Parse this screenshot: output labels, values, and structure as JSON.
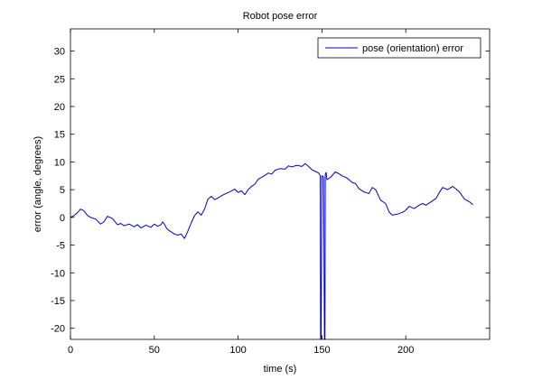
{
  "chart_data": {
    "type": "line",
    "title": "Robot pose error",
    "xlabel": "time (s)",
    "ylabel": "error (angle, degrees)",
    "xlim": [
      0,
      250
    ],
    "ylim": [
      -22,
      34
    ],
    "xticks": [
      0,
      50,
      100,
      150,
      200
    ],
    "yticks": [
      -20,
      -15,
      -10,
      -5,
      0,
      5,
      10,
      15,
      20,
      25,
      30
    ],
    "grid": false,
    "legend_position": "top-right",
    "series": [
      {
        "name": "pose (orientation) error",
        "color": "#0000cc",
        "x": [
          0,
          2,
          4,
          6,
          8,
          10,
          12,
          15,
          18,
          20,
          22,
          25,
          28,
          30,
          32,
          35,
          38,
          40,
          42,
          45,
          48,
          50,
          52,
          54,
          55,
          56,
          57,
          58,
          60,
          62,
          64,
          66,
          68,
          70,
          72,
          74,
          76,
          78,
          80,
          82,
          84,
          86,
          88,
          90,
          92,
          95,
          98,
          100,
          102,
          104,
          106,
          108,
          110,
          112,
          115,
          118,
          120,
          122,
          125,
          128,
          130,
          132,
          135,
          138,
          140,
          142,
          144,
          146,
          148,
          149,
          149.2,
          149.5,
          150,
          151,
          151.5,
          151.8,
          152,
          152.5,
          153,
          155,
          158,
          160,
          162,
          165,
          168,
          170,
          172,
          175,
          178,
          180,
          182,
          185,
          188,
          190,
          192,
          195,
          198,
          200,
          202,
          205,
          208,
          210,
          212,
          215,
          218,
          220,
          222,
          225,
          228,
          230,
          232,
          235,
          238,
          240
        ],
        "y": [
          0,
          0.3,
          0.8,
          1.5,
          1.2,
          0.4,
          0,
          -0.3,
          -1.2,
          -0.8,
          0.2,
          -0.2,
          -1.3,
          -1.1,
          -1.5,
          -1.2,
          -1.7,
          -1.3,
          -1.9,
          -1.4,
          -1.8,
          -1.2,
          -1.6,
          -1.3,
          -0.8,
          -1.2,
          -1.8,
          -2.2,
          -2.6,
          -3.0,
          -3.2,
          -3.0,
          -3.8,
          -2.5,
          -1.0,
          0.3,
          1.0,
          0.4,
          1.5,
          3.3,
          3.8,
          3.2,
          3.5,
          3.9,
          4.2,
          4.6,
          5.1,
          4.5,
          4.8,
          4.1,
          5.0,
          5.6,
          6.0,
          6.9,
          7.4,
          8.0,
          7.8,
          8.5,
          8.8,
          8.7,
          9.3,
          9.1,
          9.4,
          9.2,
          9.7,
          9.2,
          8.6,
          8.3,
          8.0,
          7.5,
          -22,
          -22,
          7.5,
          7.3,
          -22,
          -22,
          7.8,
          8.1,
          6.8,
          7.2,
          8.2,
          7.9,
          7.5,
          7.1,
          6.3,
          6.1,
          5.2,
          4.6,
          4.3,
          5.4,
          5.0,
          3.1,
          2.5,
          1.0,
          0.4,
          0.6,
          0.9,
          1.3,
          2.0,
          1.6,
          2.2,
          2.5,
          2.2,
          2.8,
          3.4,
          4.5,
          5.4,
          5.0,
          5.6,
          5.1,
          4.6,
          3.3,
          2.8,
          2.3
        ]
      }
    ]
  }
}
